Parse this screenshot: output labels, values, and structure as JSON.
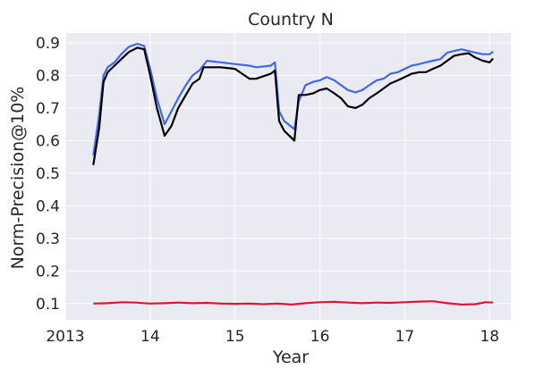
{
  "chart_data": {
    "type": "line",
    "title": "Country N",
    "xlabel": "Year",
    "ylabel": "Norm-Precision@10%",
    "xlim": [
      2013.0,
      2018.25
    ],
    "ylim": [
      0.05,
      0.93
    ],
    "x_ticks": [
      2013,
      2014,
      2015,
      2016,
      2017,
      2018
    ],
    "x_tick_labels": [
      "2013",
      "14",
      "15",
      "16",
      "17",
      "18"
    ],
    "y_ticks": [
      0.1,
      0.2,
      0.3,
      0.4,
      0.5,
      0.6,
      0.7,
      0.8,
      0.9
    ],
    "y_tick_labels": [
      "0.1",
      "0.2",
      "0.3",
      "0.4",
      "0.5",
      "0.6",
      "0.7",
      "0.8",
      "0.9"
    ],
    "grid": true,
    "background": "#eaeaf2",
    "series": [
      {
        "color": "#4169e1",
        "points": [
          [
            2013.33,
            0.555
          ],
          [
            2013.4,
            0.68
          ],
          [
            2013.45,
            0.8
          ],
          [
            2013.5,
            0.825
          ],
          [
            2013.58,
            0.84
          ],
          [
            2013.66,
            0.865
          ],
          [
            2013.75,
            0.888
          ],
          [
            2013.85,
            0.897
          ],
          [
            2013.93,
            0.89
          ],
          [
            2014.0,
            0.82
          ],
          [
            2014.08,
            0.73
          ],
          [
            2014.17,
            0.65
          ],
          [
            2014.25,
            0.69
          ],
          [
            2014.33,
            0.73
          ],
          [
            2014.42,
            0.77
          ],
          [
            2014.5,
            0.8
          ],
          [
            2014.58,
            0.815
          ],
          [
            2014.67,
            0.845
          ],
          [
            2014.83,
            0.84
          ],
          [
            2015.0,
            0.835
          ],
          [
            2015.17,
            0.83
          ],
          [
            2015.25,
            0.825
          ],
          [
            2015.42,
            0.83
          ],
          [
            2015.47,
            0.84
          ],
          [
            2015.52,
            0.69
          ],
          [
            2015.58,
            0.66
          ],
          [
            2015.7,
            0.635
          ],
          [
            2015.75,
            0.72
          ],
          [
            2015.83,
            0.77
          ],
          [
            2015.92,
            0.78
          ],
          [
            2016.0,
            0.785
          ],
          [
            2016.08,
            0.795
          ],
          [
            2016.17,
            0.785
          ],
          [
            2016.25,
            0.77
          ],
          [
            2016.33,
            0.755
          ],
          [
            2016.42,
            0.748
          ],
          [
            2016.5,
            0.755
          ],
          [
            2016.58,
            0.77
          ],
          [
            2016.67,
            0.785
          ],
          [
            2016.75,
            0.79
          ],
          [
            2016.83,
            0.805
          ],
          [
            2016.92,
            0.81
          ],
          [
            2017.0,
            0.82
          ],
          [
            2017.08,
            0.83
          ],
          [
            2017.17,
            0.835
          ],
          [
            2017.25,
            0.84
          ],
          [
            2017.33,
            0.845
          ],
          [
            2017.42,
            0.85
          ],
          [
            2017.5,
            0.87
          ],
          [
            2017.58,
            0.875
          ],
          [
            2017.67,
            0.88
          ],
          [
            2017.75,
            0.875
          ],
          [
            2017.83,
            0.87
          ],
          [
            2017.92,
            0.865
          ],
          [
            2018.0,
            0.865
          ],
          [
            2018.04,
            0.873
          ]
        ]
      },
      {
        "color": "#000000",
        "points": [
          [
            2013.33,
            0.525
          ],
          [
            2013.4,
            0.64
          ],
          [
            2013.45,
            0.78
          ],
          [
            2013.5,
            0.81
          ],
          [
            2013.58,
            0.83
          ],
          [
            2013.66,
            0.85
          ],
          [
            2013.75,
            0.872
          ],
          [
            2013.85,
            0.885
          ],
          [
            2013.93,
            0.88
          ],
          [
            2014.0,
            0.8
          ],
          [
            2014.08,
            0.7
          ],
          [
            2014.17,
            0.615
          ],
          [
            2014.25,
            0.645
          ],
          [
            2014.33,
            0.7
          ],
          [
            2014.42,
            0.74
          ],
          [
            2014.5,
            0.775
          ],
          [
            2014.58,
            0.79
          ],
          [
            2014.63,
            0.825
          ],
          [
            2014.83,
            0.825
          ],
          [
            2015.0,
            0.82
          ],
          [
            2015.17,
            0.79
          ],
          [
            2015.25,
            0.79
          ],
          [
            2015.42,
            0.805
          ],
          [
            2015.47,
            0.815
          ],
          [
            2015.52,
            0.66
          ],
          [
            2015.58,
            0.63
          ],
          [
            2015.7,
            0.6
          ],
          [
            2015.75,
            0.74
          ],
          [
            2015.83,
            0.74
          ],
          [
            2015.92,
            0.745
          ],
          [
            2016.0,
            0.755
          ],
          [
            2016.08,
            0.76
          ],
          [
            2016.17,
            0.745
          ],
          [
            2016.25,
            0.73
          ],
          [
            2016.33,
            0.705
          ],
          [
            2016.42,
            0.7
          ],
          [
            2016.5,
            0.71
          ],
          [
            2016.58,
            0.73
          ],
          [
            2016.67,
            0.745
          ],
          [
            2016.75,
            0.76
          ],
          [
            2016.83,
            0.775
          ],
          [
            2016.92,
            0.785
          ],
          [
            2017.0,
            0.795
          ],
          [
            2017.08,
            0.805
          ],
          [
            2017.17,
            0.81
          ],
          [
            2017.25,
            0.81
          ],
          [
            2017.33,
            0.82
          ],
          [
            2017.42,
            0.83
          ],
          [
            2017.5,
            0.845
          ],
          [
            2017.58,
            0.86
          ],
          [
            2017.67,
            0.865
          ],
          [
            2017.75,
            0.868
          ],
          [
            2017.83,
            0.855
          ],
          [
            2017.92,
            0.845
          ],
          [
            2018.0,
            0.84
          ],
          [
            2018.04,
            0.852
          ]
        ]
      },
      {
        "color": "#dc143c",
        "points": [
          [
            2013.33,
            0.1
          ],
          [
            2013.5,
            0.101
          ],
          [
            2013.67,
            0.104
          ],
          [
            2013.83,
            0.103
          ],
          [
            2014.0,
            0.1
          ],
          [
            2014.17,
            0.101
          ],
          [
            2014.33,
            0.103
          ],
          [
            2014.5,
            0.101
          ],
          [
            2014.67,
            0.102
          ],
          [
            2014.83,
            0.1
          ],
          [
            2015.0,
            0.099
          ],
          [
            2015.17,
            0.1
          ],
          [
            2015.33,
            0.098
          ],
          [
            2015.5,
            0.1
          ],
          [
            2015.67,
            0.097
          ],
          [
            2015.83,
            0.101
          ],
          [
            2016.0,
            0.104
          ],
          [
            2016.17,
            0.105
          ],
          [
            2016.33,
            0.103
          ],
          [
            2016.5,
            0.101
          ],
          [
            2016.67,
            0.103
          ],
          [
            2016.83,
            0.102
          ],
          [
            2017.0,
            0.104
          ],
          [
            2017.17,
            0.106
          ],
          [
            2017.33,
            0.107
          ],
          [
            2017.5,
            0.101
          ],
          [
            2017.67,
            0.097
          ],
          [
            2017.83,
            0.098
          ],
          [
            2017.95,
            0.104
          ],
          [
            2018.04,
            0.103
          ]
        ]
      }
    ]
  }
}
